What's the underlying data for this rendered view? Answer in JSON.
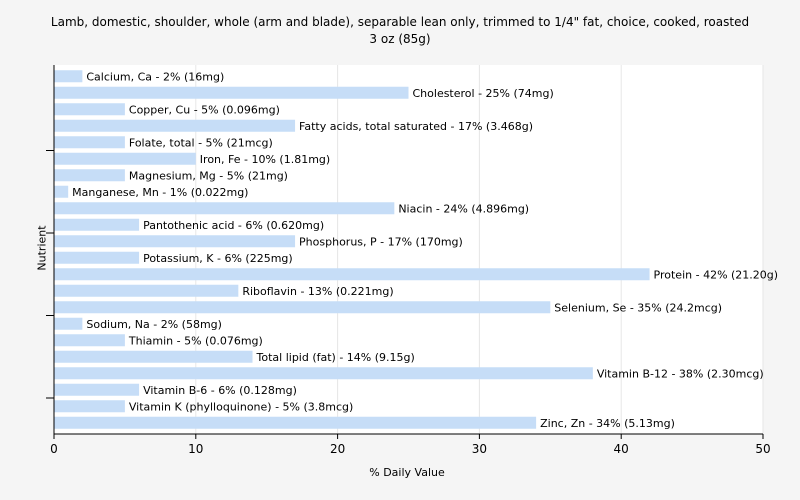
{
  "chart_data": {
    "type": "bar",
    "orientation": "horizontal",
    "title": "Lamb, domestic, shoulder, whole (arm and blade), separable lean only, trimmed to 1/4\" fat, choice, cooked, roasted",
    "subtitle": "3 oz (85g)",
    "xlabel": "% Daily Value",
    "ylabel": "Nutrient",
    "xlim": [
      0,
      50
    ],
    "xticks": [
      0,
      10,
      20,
      30,
      40,
      50
    ],
    "grid": true,
    "bar_color": "#c6ddf7",
    "categories": [
      "Calcium, Ca",
      "Cholesterol",
      "Copper, Cu",
      "Fatty acids, total saturated",
      "Folate, total",
      "Iron, Fe",
      "Magnesium, Mg",
      "Manganese, Mn",
      "Niacin",
      "Pantothenic acid",
      "Phosphorus, P",
      "Potassium, K",
      "Protein",
      "Riboflavin",
      "Selenium, Se",
      "Sodium, Na",
      "Thiamin",
      "Total lipid (fat)",
      "Vitamin B-12",
      "Vitamin B-6",
      "Vitamin K (phylloquinone)",
      "Zinc, Zn"
    ],
    "values": [
      2,
      25,
      5,
      17,
      5,
      10,
      5,
      1,
      24,
      6,
      17,
      6,
      42,
      13,
      35,
      2,
      5,
      14,
      38,
      6,
      5,
      34
    ],
    "labels": [
      "Calcium, Ca - 2% (16mg)",
      "Cholesterol - 25% (74mg)",
      "Copper, Cu - 5% (0.096mg)",
      "Fatty acids, total saturated - 17% (3.468g)",
      "Folate, total - 5% (21mcg)",
      "Iron, Fe - 10% (1.81mg)",
      "Magnesium, Mg - 5% (21mg)",
      "Manganese, Mn - 1% (0.022mg)",
      "Niacin - 24% (4.896mg)",
      "Pantothenic acid - 6% (0.620mg)",
      "Phosphorus, P - 17% (170mg)",
      "Potassium, K - 6% (225mg)",
      "Protein - 42% (21.20g)",
      "Riboflavin - 13% (0.221mg)",
      "Selenium, Se - 35% (24.2mcg)",
      "Sodium, Na - 2% (58mg)",
      "Thiamin - 5% (0.076mg)",
      "Total lipid (fat) - 14% (9.15g)",
      "Vitamin B-12 - 38% (2.30mcg)",
      "Vitamin B-6 - 6% (0.128mg)",
      "Vitamin K (phylloquinone) - 5% (3.8mcg)",
      "Zinc, Zn - 34% (5.13mg)"
    ]
  }
}
